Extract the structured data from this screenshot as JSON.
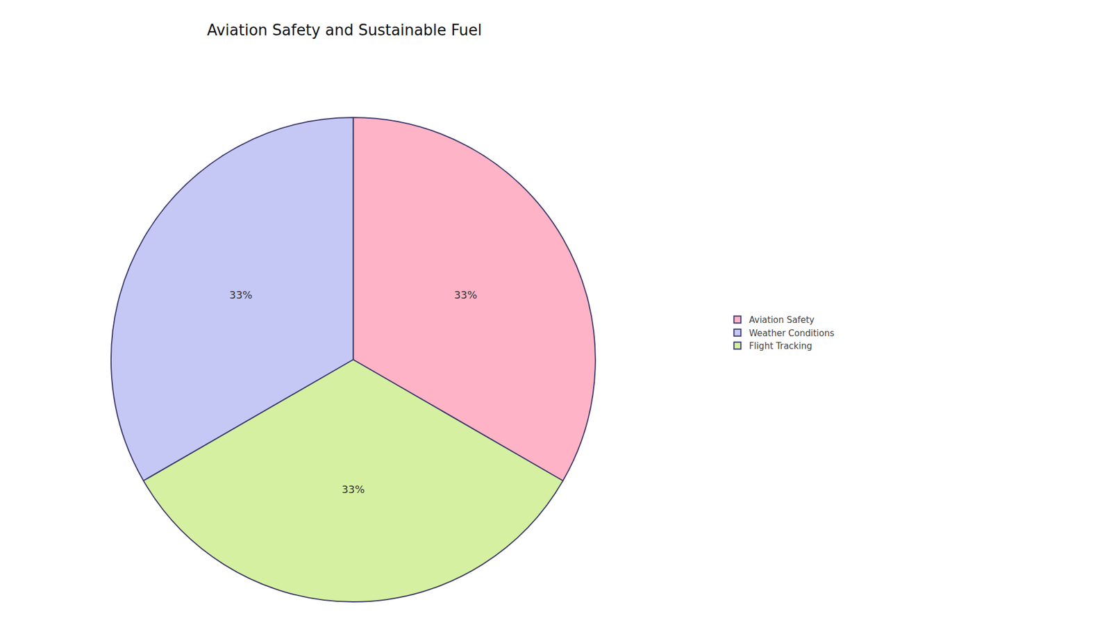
{
  "chart_data": {
    "type": "pie",
    "title": "Aviation Safety and Sustainable Fuel",
    "categories": [
      "Aviation Safety",
      "Weather Conditions",
      "Flight Tracking"
    ],
    "values": [
      33,
      33,
      33
    ],
    "value_labels": [
      "33%",
      "33%",
      "33%"
    ],
    "colors": [
      "#FFB3C6",
      "#C5C8F5",
      "#D4F0A0"
    ],
    "data_labels": true,
    "legend": "right"
  }
}
